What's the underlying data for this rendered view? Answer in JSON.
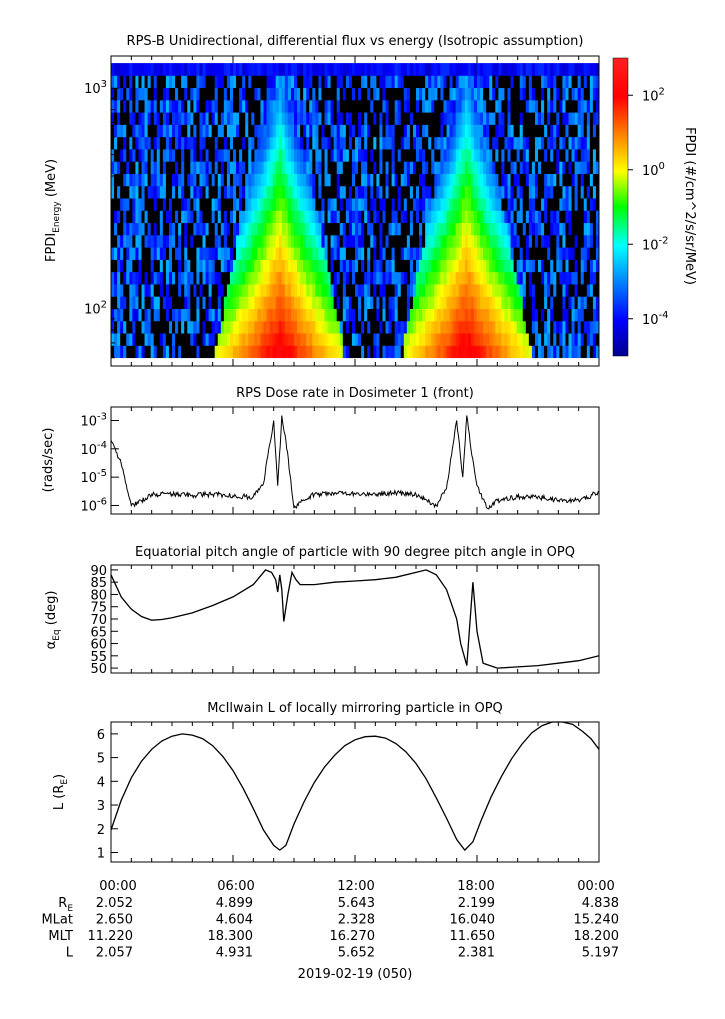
{
  "chart_data": [
    {
      "type": "heatmap",
      "title": "RPS-B  Unidirectional, differential flux vs energy (Isotropic assumption)",
      "ylabel": "FPDI",
      "ylabel_sub": "Energy",
      "ylabel_unit": " (MeV)",
      "y_scale": "log",
      "ylim": [
        55,
        1400
      ],
      "y_ticks": [
        {
          "value": 100,
          "base": "10",
          "exp": "2"
        },
        {
          "value": 1000,
          "base": "10",
          "exp": "3"
        }
      ],
      "x": [
        "2019-02-19T00:00",
        "2019-02-20T00:00"
      ],
      "colorbar": {
        "label": "FPDI (#/cm^2/s/sr/MeV)",
        "scale": "log",
        "range": [
          1e-05,
          1000.0
        ],
        "ticks": [
          {
            "value": 0.0001,
            "base": "10",
            "exp": "-4"
          },
          {
            "value": 0.01,
            "base": "10",
            "exp": "-2"
          },
          {
            "value": 1,
            "base": "10",
            "exp": "0"
          },
          {
            "value": 100,
            "base": "10",
            "exp": "2"
          }
        ]
      },
      "flux_peaks_hours": [
        8.3,
        17.5
      ]
    },
    {
      "type": "line",
      "title": "RPS  Dose rate in Dosimeter 1 (front)",
      "ylabel": "(rads/sec)",
      "y_scale": "log",
      "ylim": [
        5e-07,
        0.003
      ],
      "y_ticks": [
        {
          "value": 1e-06,
          "base": "10",
          "exp": "-6"
        },
        {
          "value": 1e-05,
          "base": "10",
          "exp": "-5"
        },
        {
          "value": 0.0001,
          "base": "10",
          "exp": "-4"
        },
        {
          "value": 0.001,
          "base": "10",
          "exp": "-3"
        }
      ],
      "series": [
        {
          "x": [
            0,
            0.5,
            1,
            1.5,
            2,
            3,
            4,
            5,
            6,
            7,
            7.5,
            8,
            8.2,
            8.4,
            8.6,
            9,
            9.5,
            10,
            11,
            12,
            13,
            14,
            15,
            16,
            16.5,
            17,
            17.3,
            17.5,
            17.7,
            18,
            18.5,
            19,
            20,
            21,
            22,
            23,
            24
          ],
          "values": [
            0.0002,
            3e-05,
            1e-06,
            1.5e-06,
            2.5e-06,
            2.5e-06,
            2.3e-06,
            2.5e-06,
            2.2e-06,
            2e-06,
            6e-06,
            0.001,
            5e-06,
            0.0015,
            0.0002,
            8e-07,
            1.5e-06,
            2.5e-06,
            2.8e-06,
            2.6e-06,
            2.5e-06,
            2.8e-06,
            2.5e-06,
            1e-06,
            4e-06,
            0.001,
            1e-05,
            0.0015,
            0.0001,
            5e-06,
            8e-07,
            1.5e-06,
            2e-06,
            2e-06,
            1.5e-06,
            1.5e-06,
            3e-06
          ]
        }
      ]
    },
    {
      "type": "line",
      "title": "Equatorial pitch angle of particle with 90 degree pitch angle in OPQ",
      "ylabel": "α",
      "ylabel_sub": "Eq",
      "ylabel_unit": " (deg)",
      "ylim": [
        48,
        92
      ],
      "y_ticks": [
        50,
        55,
        60,
        65,
        70,
        75,
        80,
        85,
        90
      ],
      "series": [
        {
          "x": [
            0,
            0.5,
            1,
            1.5,
            2,
            2.5,
            3,
            4,
            5,
            6,
            7,
            7.3,
            7.6,
            7.9,
            8.1,
            8.2,
            8.3,
            8.4,
            8.5,
            8.7,
            8.9,
            9.1,
            9.3,
            10,
            11,
            12,
            13,
            14,
            15,
            15.5,
            16,
            16.5,
            17,
            17.2,
            17.5,
            17.8,
            18,
            18.3,
            19,
            20,
            21,
            22,
            23,
            24
          ],
          "values": [
            88,
            79,
            74,
            71,
            69.5,
            69.8,
            70.5,
            72.5,
            75.5,
            79,
            84,
            87,
            90,
            89,
            86,
            81,
            88,
            82,
            69,
            80,
            89,
            86,
            84,
            84,
            85,
            85.5,
            86,
            87,
            89,
            90,
            88,
            82,
            70,
            60,
            51,
            85,
            65,
            52,
            50,
            50.5,
            51,
            52,
            53,
            55
          ]
        }
      ]
    },
    {
      "type": "line",
      "title": "McIlwain L of locally mirroring particle in OPQ",
      "ylabel": "L (R",
      "ylabel_sub": "E",
      "ylabel_unit": ")",
      "ylim": [
        0.6,
        6.5
      ],
      "y_ticks": [
        1,
        2,
        3,
        4,
        5,
        6
      ],
      "series": [
        {
          "x": [
            0,
            0.5,
            1,
            1.5,
            2,
            2.5,
            3,
            3.5,
            4,
            4.5,
            5,
            5.5,
            6,
            6.5,
            7,
            7.5,
            8,
            8.3,
            8.6,
            9,
            9.5,
            10,
            10.5,
            11,
            11.5,
            12,
            12.5,
            13,
            13.5,
            14,
            14.5,
            15,
            15.5,
            16,
            16.5,
            17,
            17.4,
            17.8,
            18.2,
            18.7,
            19.2,
            19.7,
            20.2,
            20.7,
            21.2,
            21.7,
            22.2,
            22.7,
            23.2,
            23.6,
            24
          ],
          "values": [
            1.95,
            3.2,
            4.15,
            4.85,
            5.35,
            5.7,
            5.9,
            6.0,
            5.95,
            5.8,
            5.5,
            5.05,
            4.45,
            3.7,
            2.85,
            1.95,
            1.3,
            1.1,
            1.3,
            2.2,
            3.15,
            3.95,
            4.6,
            5.1,
            5.5,
            5.75,
            5.88,
            5.9,
            5.82,
            5.6,
            5.25,
            4.75,
            4.1,
            3.3,
            2.45,
            1.55,
            1.1,
            1.45,
            2.35,
            3.35,
            4.2,
            4.95,
            5.55,
            6.05,
            6.35,
            6.5,
            6.5,
            6.4,
            6.1,
            5.8,
            5.35
          ]
        }
      ]
    }
  ],
  "x_axis": {
    "tick_labels": [
      "00:00",
      "06:00",
      "12:00",
      "18:00",
      "00:00"
    ],
    "rows": [
      {
        "label": "R",
        "label_sub": "E",
        "values": [
          "2.052",
          "4.899",
          "5.643",
          "2.199",
          "4.838"
        ]
      },
      {
        "label": "MLat",
        "values": [
          "2.650",
          "4.604",
          "2.328",
          "16.040",
          "15.240"
        ]
      },
      {
        "label": "MLT",
        "values": [
          "11.220",
          "18.300",
          "16.270",
          "11.650",
          "18.200"
        ]
      },
      {
        "label": "L",
        "values": [
          "2.057",
          "4.931",
          "5.652",
          "2.381",
          "5.197"
        ]
      }
    ],
    "date_label": "2019-02-19 (050)"
  }
}
